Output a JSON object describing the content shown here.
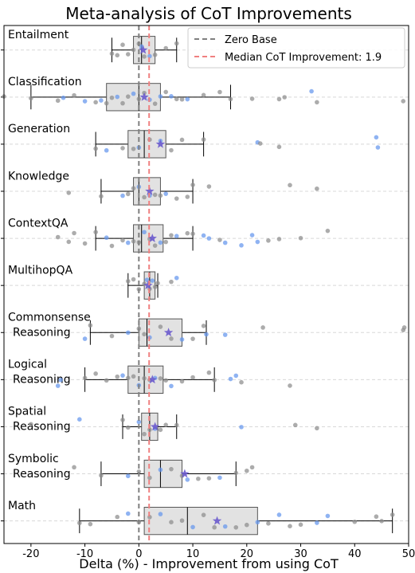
{
  "chart_data": {
    "type": "box",
    "title": "Meta-analysis of CoT Improvements",
    "xlabel": "Delta (%) - Improvement from using CoT",
    "ylabel": "",
    "xlim": [
      -25,
      50
    ],
    "xticks": [
      -20,
      -10,
      0,
      10,
      20,
      30,
      40,
      50
    ],
    "grid": "horizontal dashed",
    "legend": {
      "position": "top-right",
      "entries": [
        {
          "label": "Zero Base",
          "style": "dashed",
          "color": "#7f7f7f",
          "value": 0
        },
        {
          "label": "Median CoT Improvement: 1.9",
          "style": "dashed",
          "color": "#f08080",
          "value": 1.9
        }
      ]
    },
    "colors": {
      "box_fill": "#e2e2e2",
      "gray_points": "#8c8c8c",
      "blue_points": "#6495ed",
      "mean_marker": "#6a5acd"
    },
    "categories": [
      {
        "name": "Entailment",
        "lines": [
          "Entailment"
        ],
        "whisker_low": -5,
        "q1": -1,
        "median": 0.5,
        "q3": 3,
        "whisker_high": 7,
        "mean": 0.8,
        "points": [
          [
            -5,
            "g"
          ],
          [
            -4,
            "g"
          ],
          [
            -3,
            "g"
          ],
          [
            -2,
            "g"
          ],
          [
            -1,
            "g"
          ],
          [
            0,
            "g"
          ],
          [
            0.5,
            "b"
          ],
          [
            1,
            "g"
          ],
          [
            2,
            "b"
          ],
          [
            3,
            "g"
          ],
          [
            5,
            "g"
          ],
          [
            7,
            "g"
          ]
        ]
      },
      {
        "name": "Classification",
        "lines": [
          "Classification"
        ],
        "whisker_low": -20,
        "q1": -6,
        "median": 0,
        "q3": 4,
        "whisker_high": 17,
        "mean": 1,
        "points": [
          [
            -25,
            "g"
          ],
          [
            -20,
            "g"
          ],
          [
            -15,
            "g"
          ],
          [
            -14,
            "b"
          ],
          [
            -12,
            "g"
          ],
          [
            -10,
            "b"
          ],
          [
            -8,
            "g"
          ],
          [
            -7,
            "b"
          ],
          [
            -6,
            "g"
          ],
          [
            -5,
            "g"
          ],
          [
            -4,
            "b"
          ],
          [
            -3,
            "g"
          ],
          [
            -2,
            "g"
          ],
          [
            -1,
            "b"
          ],
          [
            0,
            "g"
          ],
          [
            1,
            "g"
          ],
          [
            2,
            "b"
          ],
          [
            3,
            "g"
          ],
          [
            4,
            "b"
          ],
          [
            5,
            "g"
          ],
          [
            6,
            "b"
          ],
          [
            7,
            "g"
          ],
          [
            8,
            "g"
          ],
          [
            9,
            "b"
          ],
          [
            12,
            "g"
          ],
          [
            15,
            "g"
          ],
          [
            17,
            "g"
          ],
          [
            21,
            "g"
          ],
          [
            26,
            "g"
          ],
          [
            27,
            "g"
          ],
          [
            32,
            "b"
          ],
          [
            33,
            "g"
          ],
          [
            49,
            "g"
          ]
        ]
      },
      {
        "name": "Generation",
        "lines": [
          "Generation"
        ],
        "whisker_low": -8,
        "q1": -2,
        "median": 1,
        "q3": 5,
        "whisker_high": 12,
        "mean": 4,
        "points": [
          [
            -8,
            "g"
          ],
          [
            -6,
            "b"
          ],
          [
            -3,
            "g"
          ],
          [
            -1,
            "g"
          ],
          [
            0,
            "b"
          ],
          [
            2,
            "g"
          ],
          [
            4,
            "b"
          ],
          [
            6,
            "g"
          ],
          [
            8,
            "g"
          ],
          [
            12,
            "g"
          ],
          [
            22,
            "b"
          ],
          [
            22.5,
            "g"
          ],
          [
            26,
            "g"
          ],
          [
            44,
            "b"
          ],
          [
            44.3,
            "b"
          ]
        ]
      },
      {
        "name": "Knowledge",
        "lines": [
          "Knowledge"
        ],
        "whisker_low": -7,
        "q1": -1,
        "median": 0,
        "q3": 4,
        "whisker_high": 10,
        "mean": 2,
        "points": [
          [
            -13,
            "g"
          ],
          [
            -7,
            "g"
          ],
          [
            -3,
            "b"
          ],
          [
            -2,
            "g"
          ],
          [
            -1,
            "g"
          ],
          [
            0,
            "b"
          ],
          [
            1,
            "g"
          ],
          [
            2,
            "b"
          ],
          [
            3,
            "g"
          ],
          [
            4,
            "g"
          ],
          [
            5,
            "b"
          ],
          [
            7,
            "g"
          ],
          [
            9,
            "g"
          ],
          [
            10,
            "g"
          ],
          [
            13,
            "g"
          ],
          [
            28,
            "g"
          ],
          [
            33,
            "g"
          ]
        ]
      },
      {
        "name": "ContextQA",
        "lines": [
          "ContextQA"
        ],
        "whisker_low": -8,
        "q1": -1,
        "median": 0.5,
        "q3": 4.5,
        "whisker_high": 10,
        "mean": 2.5,
        "points": [
          [
            -15,
            "g"
          ],
          [
            -13,
            "g"
          ],
          [
            -12,
            "g"
          ],
          [
            -10,
            "g"
          ],
          [
            -8,
            "g"
          ],
          [
            -6,
            "b"
          ],
          [
            -5,
            "g"
          ],
          [
            -3,
            "g"
          ],
          [
            -2,
            "b"
          ],
          [
            -1,
            "g"
          ],
          [
            0,
            "g"
          ],
          [
            1,
            "b"
          ],
          [
            2,
            "g"
          ],
          [
            3,
            "g"
          ],
          [
            4,
            "b"
          ],
          [
            5,
            "g"
          ],
          [
            6,
            "g"
          ],
          [
            7,
            "b"
          ],
          [
            9,
            "g"
          ],
          [
            10,
            "g"
          ],
          [
            12,
            "b"
          ],
          [
            13,
            "b"
          ],
          [
            15,
            "g"
          ],
          [
            16,
            "b"
          ],
          [
            19,
            "b"
          ],
          [
            21,
            "b"
          ],
          [
            22,
            "b"
          ],
          [
            24,
            "g"
          ],
          [
            26,
            "g"
          ],
          [
            30,
            "g"
          ],
          [
            35,
            "g"
          ]
        ]
      },
      {
        "name": "MultihopQA",
        "lines": [
          "MultihopQA"
        ],
        "whisker_low": -2,
        "q1": 1,
        "median": 2,
        "q3": 3,
        "whisker_high": 3.5,
        "mean": 1.7,
        "points": [
          [
            -2,
            "g"
          ],
          [
            -1,
            "g"
          ],
          [
            0,
            "g"
          ],
          [
            1,
            "g"
          ],
          [
            1.5,
            "b"
          ],
          [
            2,
            "g"
          ],
          [
            2.5,
            "b"
          ],
          [
            3,
            "g"
          ],
          [
            3.5,
            "g"
          ],
          [
            6,
            "g"
          ],
          [
            7,
            "b"
          ]
        ]
      },
      {
        "name": "Commonsense Reasoning",
        "lines": [
          "Commonsense",
          "Reasoning"
        ],
        "whisker_low": -9,
        "q1": 0,
        "median": 1.5,
        "q3": 8,
        "whisker_high": 12.5,
        "mean": 5.5,
        "points": [
          [
            -10,
            "b"
          ],
          [
            -9,
            "g"
          ],
          [
            -5,
            "g"
          ],
          [
            -2,
            "b"
          ],
          [
            0,
            "g"
          ],
          [
            1,
            "g"
          ],
          [
            2,
            "b"
          ],
          [
            4,
            "g"
          ],
          [
            6,
            "g"
          ],
          [
            8,
            "b"
          ],
          [
            10,
            "g"
          ],
          [
            12,
            "g"
          ],
          [
            12.5,
            "b"
          ],
          [
            16,
            "b"
          ],
          [
            23,
            "g"
          ],
          [
            49,
            "g"
          ],
          [
            49.2,
            "g"
          ]
        ]
      },
      {
        "name": "Logical Reasoning",
        "lines": [
          "Logical",
          "Reasoning"
        ],
        "whisker_low": -10,
        "q1": -2,
        "median": 1,
        "q3": 4.5,
        "whisker_high": 14,
        "mean": 2.5,
        "points": [
          [
            -15,
            "b"
          ],
          [
            -14.5,
            "b"
          ],
          [
            -10,
            "g"
          ],
          [
            -8,
            "g"
          ],
          [
            -6,
            "g"
          ],
          [
            -4,
            "g"
          ],
          [
            -3,
            "b"
          ],
          [
            -2,
            "g"
          ],
          [
            -1,
            "g"
          ],
          [
            0,
            "b"
          ],
          [
            1,
            "g"
          ],
          [
            2,
            "g"
          ],
          [
            3,
            "b"
          ],
          [
            4,
            "g"
          ],
          [
            5,
            "g"
          ],
          [
            6,
            "b"
          ],
          [
            8,
            "g"
          ],
          [
            10,
            "g"
          ],
          [
            13,
            "g"
          ],
          [
            14,
            "g"
          ],
          [
            17,
            "b"
          ],
          [
            18,
            "b"
          ],
          [
            19,
            "g"
          ],
          [
            28,
            "g"
          ]
        ]
      },
      {
        "name": "Spatial Reasoning",
        "lines": [
          "Spatial",
          "Reasoning"
        ],
        "whisker_low": -3,
        "q1": 0.5,
        "median": 2,
        "q3": 3.5,
        "whisker_high": 7,
        "mean": 3,
        "points": [
          [
            -20,
            "g"
          ],
          [
            -11,
            "b"
          ],
          [
            -3,
            "g"
          ],
          [
            -2,
            "g"
          ],
          [
            0,
            "b"
          ],
          [
            1,
            "g"
          ],
          [
            2,
            "g"
          ],
          [
            3,
            "b"
          ],
          [
            4,
            "g"
          ],
          [
            5,
            "g"
          ],
          [
            7,
            "g"
          ],
          [
            19,
            "b"
          ],
          [
            29,
            "g"
          ],
          [
            33,
            "g"
          ]
        ]
      },
      {
        "name": "Symbolic Reasoning",
        "lines": [
          "Symbolic",
          "Reasoning"
        ],
        "whisker_low": -7,
        "q1": 1,
        "median": 4,
        "q3": 8,
        "whisker_high": 18,
        "mean": 8.5,
        "points": [
          [
            -12,
            "g"
          ],
          [
            -7,
            "g"
          ],
          [
            -2,
            "b"
          ],
          [
            0,
            "g"
          ],
          [
            2,
            "g"
          ],
          [
            4,
            "b"
          ],
          [
            6,
            "g"
          ],
          [
            8,
            "g"
          ],
          [
            9,
            "b"
          ],
          [
            11,
            "g"
          ],
          [
            13,
            "g"
          ],
          [
            15,
            "b"
          ],
          [
            18,
            "g"
          ],
          [
            20,
            "g"
          ],
          [
            21,
            "g"
          ]
        ]
      },
      {
        "name": "Math",
        "lines": [
          "Math"
        ],
        "whisker_low": -11,
        "q1": 1,
        "median": 9,
        "q3": 22,
        "whisker_high": 47,
        "mean": 14.5,
        "points": [
          [
            -11,
            "g"
          ],
          [
            -9,
            "g"
          ],
          [
            -4,
            "g"
          ],
          [
            -2,
            "b"
          ],
          [
            0,
            "g"
          ],
          [
            2,
            "g"
          ],
          [
            4,
            "b"
          ],
          [
            6,
            "g"
          ],
          [
            8,
            "g"
          ],
          [
            10,
            "b"
          ],
          [
            12,
            "g"
          ],
          [
            14,
            "g"
          ],
          [
            16,
            "b"
          ],
          [
            18,
            "g"
          ],
          [
            20,
            "g"
          ],
          [
            22,
            "b"
          ],
          [
            24,
            "g"
          ],
          [
            26,
            "b"
          ],
          [
            28,
            "g"
          ],
          [
            30,
            "g"
          ],
          [
            33,
            "b"
          ],
          [
            35,
            "b"
          ],
          [
            40,
            "g"
          ],
          [
            44,
            "g"
          ],
          [
            45,
            "g"
          ],
          [
            47,
            "g"
          ]
        ]
      }
    ]
  }
}
